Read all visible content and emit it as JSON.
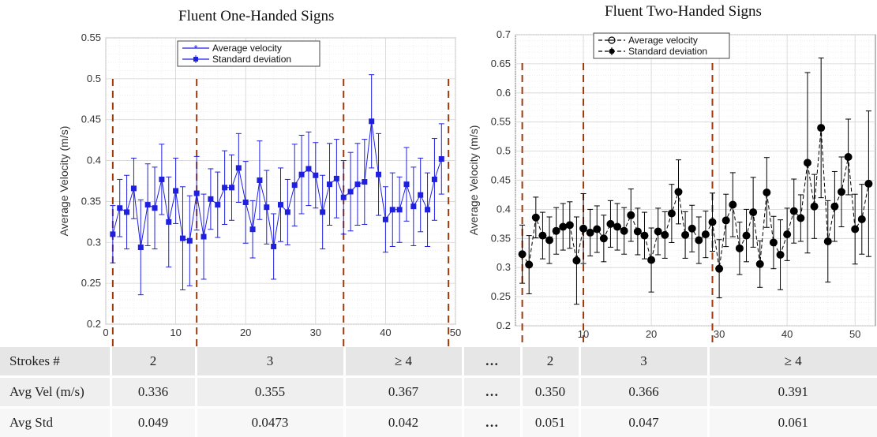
{
  "chart_data": [
    {
      "type": "line",
      "title": "Fluent One-Handed Signs",
      "xlabel": "",
      "ylabel": "Average Velocity (m/s)",
      "xlim": [
        0,
        50
      ],
      "ylim": [
        0.2,
        0.55
      ],
      "xticks": [
        "0",
        "10",
        "20",
        "30",
        "40",
        "50"
      ],
      "yticks": [
        "0.2",
        "0.25",
        "0.3",
        "0.35",
        "0.4",
        "0.45",
        "0.5",
        "0.55"
      ],
      "grid": true,
      "legend": "top-center",
      "color": "#1f1fe0",
      "series": [
        {
          "name": "Average velocity",
          "x": [
            1,
            2,
            3,
            4,
            5,
            6,
            7,
            8,
            9,
            10,
            11,
            12,
            13,
            14,
            15,
            16,
            17,
            18,
            19,
            20,
            21,
            22,
            23,
            24,
            25,
            26,
            27,
            28,
            29,
            30,
            31,
            32,
            33,
            34,
            35,
            36,
            37,
            38,
            39,
            40,
            41,
            42,
            43,
            44,
            45,
            46,
            47,
            48
          ],
          "values": [
            0.31,
            0.342,
            0.337,
            0.366,
            0.294,
            0.346,
            0.342,
            0.377,
            0.325,
            0.363,
            0.305,
            0.302,
            0.36,
            0.307,
            0.353,
            0.346,
            0.367,
            0.367,
            0.391,
            0.349,
            0.316,
            0.376,
            0.343,
            0.295,
            0.346,
            0.337,
            0.37,
            0.383,
            0.39,
            0.382,
            0.337,
            0.371,
            0.378,
            0.355,
            0.362,
            0.371,
            0.374,
            0.448,
            0.383,
            0.328,
            0.34,
            0.34,
            0.371,
            0.344,
            0.358,
            0.34,
            0.377,
            0.402
          ]
        },
        {
          "name": "Standard deviation",
          "values": [
            0.035,
            0.035,
            0.045,
            0.037,
            0.058,
            0.05,
            0.05,
            0.043,
            0.055,
            0.04,
            0.063,
            0.055,
            0.045,
            0.052,
            0.037,
            0.04,
            0.045,
            0.04,
            0.042,
            0.05,
            0.035,
            0.048,
            0.045,
            0.04,
            0.045,
            0.04,
            0.05,
            0.048,
            0.045,
            0.04,
            0.045,
            0.05,
            0.048,
            0.045,
            0.048,
            0.05,
            0.052,
            0.057,
            0.05,
            0.04,
            0.045,
            0.04,
            0.045,
            0.048,
            0.045,
            0.045,
            0.05,
            0.043
          ]
        }
      ],
      "vlines": [
        1,
        13,
        34,
        49
      ]
    },
    {
      "type": "line",
      "title": "Fluent Two-Handed Signs",
      "xlabel": "",
      "ylabel": "Average Velocity (m/s)",
      "xlim": [
        0,
        53
      ],
      "ylim": [
        0.2,
        0.7
      ],
      "xticks": [
        "10",
        "20",
        "30",
        "40",
        "50"
      ],
      "yticks": [
        "0.2",
        "0.25",
        "0.3",
        "0.35",
        "0.4",
        "0.45",
        "0.5",
        "0.55",
        "0.6",
        "0.65",
        "0.7"
      ],
      "grid": true,
      "legend": "top-left",
      "color": "#000000",
      "series": [
        {
          "name": "Average velocity",
          "x": [
            1,
            2,
            3,
            4,
            5,
            6,
            7,
            8,
            9,
            10,
            11,
            12,
            13,
            14,
            15,
            16,
            17,
            18,
            19,
            20,
            21,
            22,
            23,
            24,
            25,
            26,
            27,
            28,
            29,
            30,
            31,
            32,
            33,
            34,
            35,
            36,
            37,
            38,
            39,
            40,
            41,
            42,
            43,
            44,
            45,
            46,
            47,
            48,
            49,
            50,
            51,
            52
          ],
          "values": [
            0.323,
            0.305,
            0.386,
            0.355,
            0.347,
            0.363,
            0.37,
            0.373,
            0.312,
            0.367,
            0.36,
            0.366,
            0.35,
            0.375,
            0.37,
            0.363,
            0.39,
            0.362,
            0.355,
            0.313,
            0.362,
            0.356,
            0.393,
            0.43,
            0.356,
            0.367,
            0.347,
            0.357,
            0.378,
            0.298,
            0.381,
            0.408,
            0.333,
            0.355,
            0.395,
            0.306,
            0.429,
            0.343,
            0.322,
            0.357,
            0.397,
            0.385,
            0.48,
            0.405,
            0.54,
            0.345,
            0.405,
            0.43,
            0.49,
            0.366,
            0.383,
            0.444
          ]
        },
        {
          "name": "Standard deviation",
          "values": [
            0.05,
            0.05,
            0.035,
            0.04,
            0.04,
            0.04,
            0.04,
            0.04,
            0.075,
            0.06,
            0.04,
            0.04,
            0.04,
            0.04,
            0.04,
            0.04,
            0.045,
            0.04,
            0.04,
            0.055,
            0.04,
            0.04,
            0.05,
            0.055,
            0.04,
            0.04,
            0.04,
            0.04,
            0.05,
            0.05,
            0.045,
            0.055,
            0.045,
            0.045,
            0.06,
            0.04,
            0.06,
            0.045,
            0.06,
            0.045,
            0.055,
            0.04,
            0.155,
            0.055,
            0.12,
            0.07,
            0.06,
            0.06,
            0.065,
            0.06,
            0.06,
            0.125
          ]
        }
      ],
      "vlines": [
        1,
        10,
        29
      ]
    }
  ],
  "table": {
    "headers": [
      "Strokes #",
      "2",
      "3",
      "≥ 4",
      "…",
      "2",
      "3",
      "≥ 4"
    ],
    "rows": [
      [
        "Avg Vel (m/s)",
        "0.336",
        "0.355",
        "0.367",
        "…",
        "0.350",
        "0.366",
        "0.391"
      ],
      [
        "Avg Std",
        "0.049",
        "0.0473",
        "0.042",
        "…",
        "0.051",
        "0.047",
        "0.061"
      ]
    ]
  },
  "colors": {
    "blue_series": "#1f1fe0",
    "black_series": "#000000",
    "divider": "#9c3a0e"
  }
}
